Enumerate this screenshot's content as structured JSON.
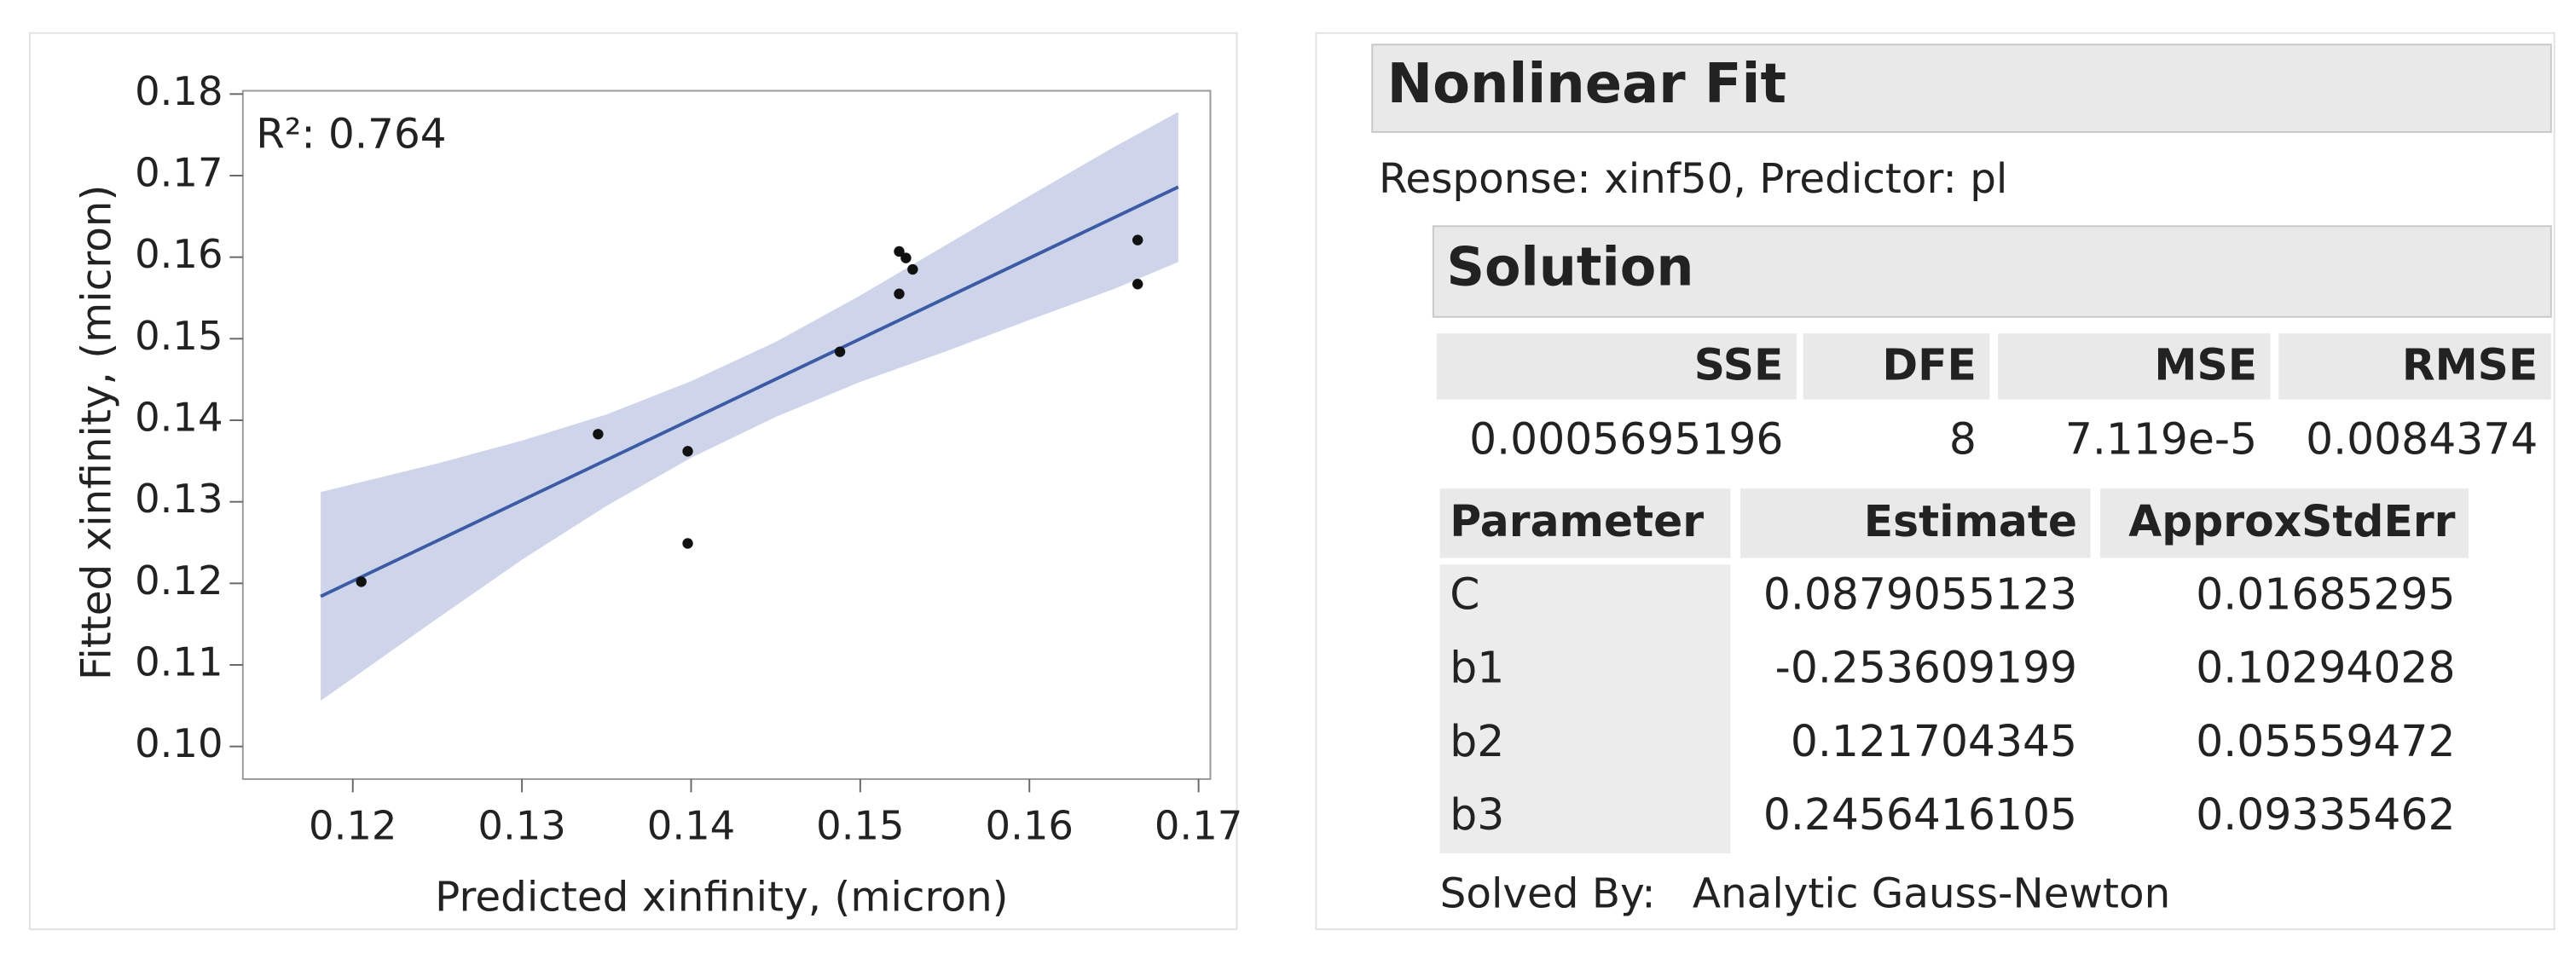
{
  "chart_data": {
    "type": "scatter",
    "annotation": "R²: 0.764",
    "x_label": "Predicted xinfinity, (micron)",
    "y_label": "Fitted xinfinity, (micron)",
    "xlim": [
      0.1135,
      0.1707
    ],
    "ylim": [
      0.096,
      0.1804
    ],
    "xticks": [
      0.12,
      0.13,
      0.14,
      0.15,
      0.16,
      0.17
    ],
    "yticks": [
      {
        "value": 0.1,
        "label": "0.10"
      },
      0.11,
      0.12,
      0.13,
      0.14,
      0.15,
      0.16,
      0.17,
      0.18
    ],
    "points": {
      "color": "#111111",
      "x": [
        0.1205,
        0.1345,
        0.1398,
        0.1398,
        0.1488,
        0.1523,
        0.1523,
        0.1527,
        0.1531,
        0.1664,
        0.1664
      ],
      "y": [
        0.1202,
        0.1383,
        0.1362,
        0.1249,
        0.1484,
        0.1555,
        0.1607,
        0.1599,
        0.1585,
        0.1621,
        0.1567
      ]
    },
    "fit": {
      "color": "#3b5ba5",
      "x": [
        0.1181,
        0.1688
      ],
      "y": [
        0.1184,
        0.1686
      ]
    },
    "band": {
      "color": "#c5cee6",
      "x": [
        0.1181,
        0.125,
        0.13,
        0.135,
        0.14,
        0.145,
        0.15,
        0.155,
        0.16,
        0.165,
        0.1688
      ],
      "upper": [
        0.1312,
        0.1347,
        0.1375,
        0.1407,
        0.1448,
        0.1496,
        0.1553,
        0.1614,
        0.1675,
        0.1735,
        0.1778
      ],
      "lower": [
        0.1056,
        0.1157,
        0.1229,
        0.1295,
        0.1354,
        0.1404,
        0.1447,
        0.1484,
        0.1523,
        0.1561,
        0.1594
      ]
    }
  },
  "report": {
    "title": "Nonlinear Fit",
    "subtitle": "Response: xinf50, Predictor: pl",
    "solution": {
      "title": "Solution",
      "summary": {
        "columns": [
          "SSE",
          "DFE",
          "MSE",
          "RMSE"
        ],
        "row": [
          "0.0005695196",
          "8",
          "7.119e-5",
          "0.0084374"
        ]
      },
      "parameters": {
        "columns": [
          "Parameter",
          "Estimate",
          "ApproxStdErr"
        ],
        "rows": [
          [
            "C",
            "0.0879055123",
            "0.01685295"
          ],
          [
            "b1",
            "-0.253609199",
            "0.10294028"
          ],
          [
            "b2",
            "0.121704345",
            "0.05559472"
          ],
          [
            "b3",
            "0.2456416105",
            "0.09335462"
          ]
        ]
      },
      "solved_by": {
        "label": "Solved By:",
        "method": "Analytic Gauss-Newton"
      }
    }
  }
}
